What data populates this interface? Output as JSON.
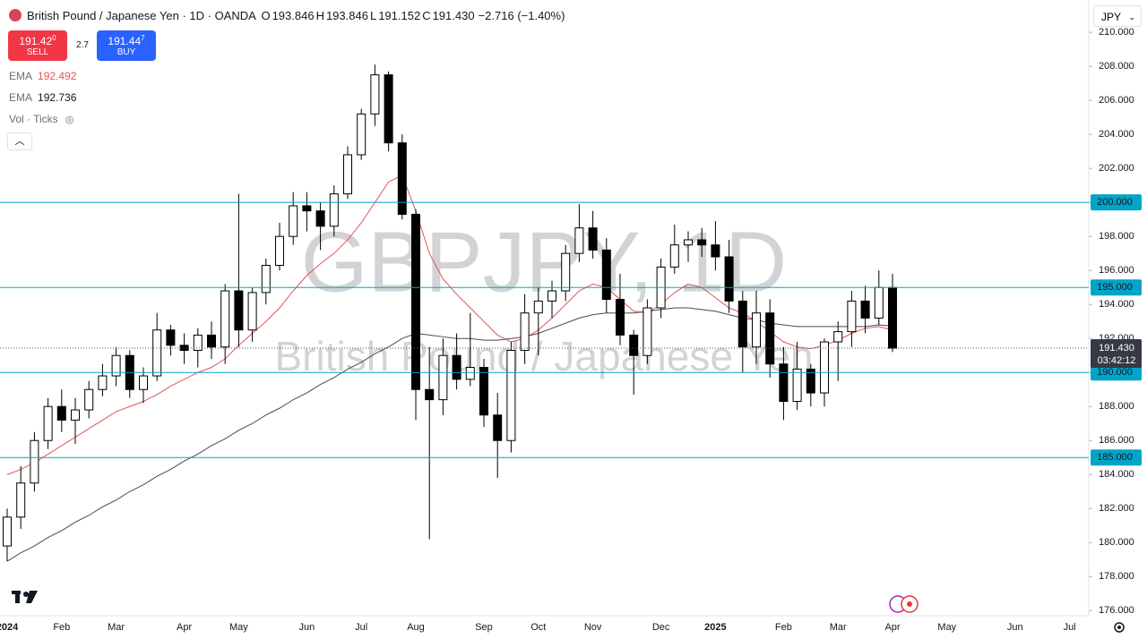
{
  "header": {
    "symbol": "British Pound / Japanese Yen · 1D · OANDA",
    "ohlc": [
      {
        "key": "O",
        "value": "193.846"
      },
      {
        "key": "H",
        "value": "193.846"
      },
      {
        "key": "L",
        "value": "191.152"
      },
      {
        "key": "C",
        "value": "191.430"
      }
    ],
    "change": "−2.716 (−1.40%)"
  },
  "trade": {
    "sell_price": "191.42",
    "sell_sup": "0",
    "sell": "SELL",
    "spread": "2.7",
    "buy_price": "191.44",
    "buy_sup": "7",
    "buy": "BUY"
  },
  "indicators": [
    {
      "name": "EMA",
      "value": "192.492"
    },
    {
      "name": "EMA",
      "value": "192.736"
    },
    {
      "name": "Vol · Ticks"
    }
  ],
  "currency": "JPY",
  "watermark": {
    "symbol": "GBPJPY, 1D",
    "name": "British Pound / Japanese Yen"
  },
  "chart_data": {
    "type": "candlestick",
    "categories": [
      "2024",
      null,
      null,
      null,
      "Feb",
      null,
      null,
      null,
      "Mar",
      null,
      null,
      null,
      null,
      "Apr",
      null,
      null,
      null,
      "May",
      null,
      null,
      null,
      null,
      "Jun",
      null,
      null,
      null,
      "Jul",
      null,
      null,
      null,
      "Aug",
      null,
      null,
      null,
      null,
      "Sep",
      null,
      null,
      null,
      "Oct",
      null,
      null,
      null,
      "Nov",
      null,
      null,
      null,
      null,
      "Dec",
      null,
      null,
      null,
      "2025",
      null,
      null,
      null,
      null,
      "Feb",
      null,
      null,
      null,
      "Mar",
      null,
      null,
      null,
      "Apr",
      null,
      null,
      null,
      "May",
      null,
      null,
      null,
      null,
      "Jun",
      null,
      null,
      null,
      "Jul",
      null
    ],
    "open": [
      179.8,
      181.5,
      183.5,
      186,
      188,
      187.2,
      187.8,
      189,
      189.8,
      191,
      189,
      189.8,
      192.5,
      191.6,
      191.3,
      192.2,
      191.5,
      194.8,
      192.5,
      194.7,
      196.3,
      198,
      199.8,
      199.5,
      198.6,
      200.5,
      202.8,
      205.2,
      207.5,
      203.5,
      199.3,
      189,
      188.4,
      191,
      189.6,
      190.3,
      187.5,
      186,
      191.3,
      193.5,
      194.2,
      194.8,
      197,
      198.5,
      197.2,
      194.3,
      192.2,
      191,
      193.8,
      196.2,
      197.5,
      197.8,
      197.5,
      196.8,
      194.2,
      191.5,
      193.5,
      190.5,
      188.3,
      190.2,
      188.8,
      191.8,
      192.4,
      194.2,
      193.2,
      195,
      null,
      null,
      null,
      null,
      null,
      null,
      null,
      null,
      null,
      null,
      null,
      null,
      null,
      null
    ],
    "high": [
      182,
      184.5,
      186.5,
      188.5,
      189,
      188.5,
      189.5,
      190.5,
      191.5,
      191.3,
      190.3,
      193.5,
      192.8,
      192.3,
      192.6,
      193,
      195.2,
      200.5,
      195,
      196.7,
      198.8,
      200.6,
      200.6,
      200,
      201,
      203.3,
      205.5,
      208.1,
      207.7,
      204,
      199.6,
      191.5,
      192,
      192.3,
      193.5,
      190.8,
      188.8,
      191.8,
      194.6,
      195,
      195.4,
      197.5,
      199.9,
      199.5,
      197.9,
      195.8,
      192.5,
      194.3,
      196.7,
      198.7,
      198.3,
      198.5,
      198.9,
      197.8,
      194.8,
      194.8,
      194.3,
      191.5,
      191.8,
      190.5,
      192,
      193,
      194.8,
      195.1,
      196,
      195.8,
      null,
      null,
      null,
      null,
      null,
      null,
      null,
      null,
      null,
      null,
      null,
      null,
      null,
      null
    ],
    "low": [
      178.9,
      180.8,
      183,
      185.5,
      186.5,
      185.8,
      187.3,
      188.6,
      189.2,
      188.5,
      188.2,
      189.5,
      191,
      190.5,
      190.3,
      190.8,
      190.5,
      191.5,
      191.8,
      194,
      196,
      197.5,
      198.3,
      197.2,
      198,
      200.2,
      202.5,
      204.5,
      203,
      199,
      187.2,
      180.2,
      187.5,
      189,
      189.2,
      186.8,
      183.8,
      185.3,
      190.5,
      191,
      193.2,
      194.2,
      196.5,
      196.7,
      193.5,
      191.6,
      188.7,
      190.5,
      193.2,
      195.8,
      196.5,
      196.8,
      196,
      193.5,
      190,
      190.5,
      189.7,
      187.2,
      187.8,
      188,
      188,
      189.5,
      191.5,
      192.3,
      192.8,
      191.2,
      null,
      null,
      null,
      null,
      null,
      null,
      null,
      null,
      null,
      null,
      null,
      null,
      null,
      null
    ],
    "close": [
      181.5,
      183.5,
      186,
      188,
      187.2,
      187.8,
      189,
      189.8,
      191,
      189,
      189.8,
      192.5,
      191.6,
      191.3,
      192.2,
      191.5,
      194.8,
      192.5,
      194.7,
      196.3,
      198,
      199.8,
      199.5,
      198.6,
      200.5,
      202.8,
      205.2,
      207.5,
      203.5,
      199.3,
      189,
      188.4,
      191,
      189.6,
      190.3,
      187.5,
      186,
      191.3,
      193.5,
      194.2,
      194.8,
      197,
      198.5,
      197.2,
      194.3,
      192.2,
      191,
      193.8,
      196.2,
      197.5,
      197.8,
      197.5,
      196.8,
      194.2,
      191.5,
      193.5,
      190.5,
      188.3,
      190.2,
      188.8,
      191.8,
      192.4,
      194.2,
      193.2,
      195,
      191.43,
      null,
      null,
      null,
      null,
      null,
      null,
      null,
      null,
      null,
      null,
      null,
      null,
      null,
      null
    ],
    "up_color": "#ffffff",
    "down_color": "#000000",
    "wick_color": "#000000",
    "ema": [
      {
        "color": "#e05555",
        "values": [
          184.0,
          184.3,
          184.7,
          185.2,
          185.7,
          186.2,
          186.7,
          187.2,
          187.7,
          188.0,
          188.3,
          188.7,
          189.2,
          189.6,
          190.0,
          190.3,
          190.8,
          191.6,
          192.3,
          193.0,
          193.8,
          194.8,
          195.7,
          196.4,
          197.0,
          197.8,
          198.8,
          200.0,
          201.2,
          201.6,
          199.5,
          197.0,
          195.5,
          194.6,
          193.8,
          193.0,
          192.2,
          191.8,
          192.0,
          192.5,
          193.2,
          194.0,
          194.8,
          195.2,
          195.0,
          194.3,
          193.6,
          193.5,
          194.0,
          194.7,
          195.2,
          195.0,
          194.4,
          193.8,
          193.5,
          193.0,
          192.4,
          191.8,
          191.5,
          191.4,
          191.6,
          191.9,
          192.3,
          192.6,
          192.7,
          192.492,
          null,
          null,
          null,
          null,
          null,
          null,
          null,
          null,
          null,
          null,
          null,
          null,
          null,
          null
        ]
      },
      {
        "color": "#4a4a4a",
        "values": [
          178.9,
          179.4,
          179.8,
          180.3,
          180.7,
          181.2,
          181.6,
          182.1,
          182.5,
          183.0,
          183.4,
          183.9,
          184.3,
          184.8,
          185.2,
          185.7,
          186.1,
          186.6,
          187.0,
          187.5,
          187.9,
          188.4,
          188.8,
          189.3,
          189.7,
          190.2,
          190.6,
          191.1,
          191.5,
          192.0,
          192.3,
          192.2,
          192.1,
          192.0,
          192.0,
          191.9,
          191.9,
          192.0,
          192.1,
          192.3,
          192.6,
          192.9,
          193.2,
          193.4,
          193.5,
          193.5,
          193.5,
          193.6,
          193.7,
          193.8,
          193.8,
          193.7,
          193.6,
          193.4,
          193.2,
          193.1,
          192.9,
          192.8,
          192.7,
          192.7,
          192.7,
          192.7,
          192.7,
          192.7,
          192.8,
          192.736,
          null,
          null,
          null,
          null,
          null,
          null,
          null,
          null,
          null,
          null,
          null,
          null,
          null,
          null
        ]
      }
    ],
    "hlines": [
      {
        "value": 200,
        "label": "200.000"
      },
      {
        "value": 195,
        "label": "195.000"
      },
      {
        "value": 190,
        "label": "190.000"
      },
      {
        "value": 185,
        "label": "185.000"
      }
    ],
    "hline_color": "#00a5c8",
    "last_price": {
      "value": 191.43,
      "label": "191.430"
    },
    "countdown": "03:42:12",
    "ylim": [
      175.7,
      211.9
    ],
    "yticks": [
      {
        "value": 176,
        "label": "176.000"
      },
      {
        "value": 178,
        "label": "178.000"
      },
      {
        "value": 180,
        "label": "180.000"
      },
      {
        "value": 182,
        "label": "182.000"
      },
      {
        "value": 184,
        "label": "184.000"
      },
      {
        "value": 186,
        "label": "186.000"
      },
      {
        "value": 188,
        "label": "188.000"
      },
      {
        "value": 190,
        "label": "190.000"
      },
      {
        "value": 192,
        "label": "192.000"
      },
      {
        "value": 194,
        "label": "194.000"
      },
      {
        "value": 196,
        "label": "196.000"
      },
      {
        "value": 198,
        "label": "198.000"
      },
      {
        "value": 200,
        "label": "200.000"
      },
      {
        "value": 202,
        "label": "202.000"
      },
      {
        "value": 204,
        "label": "204.000"
      },
      {
        "value": 206,
        "label": "206.000"
      },
      {
        "value": 208,
        "label": "208.000"
      },
      {
        "value": 210,
        "label": "210.000"
      }
    ],
    "grid": false
  }
}
